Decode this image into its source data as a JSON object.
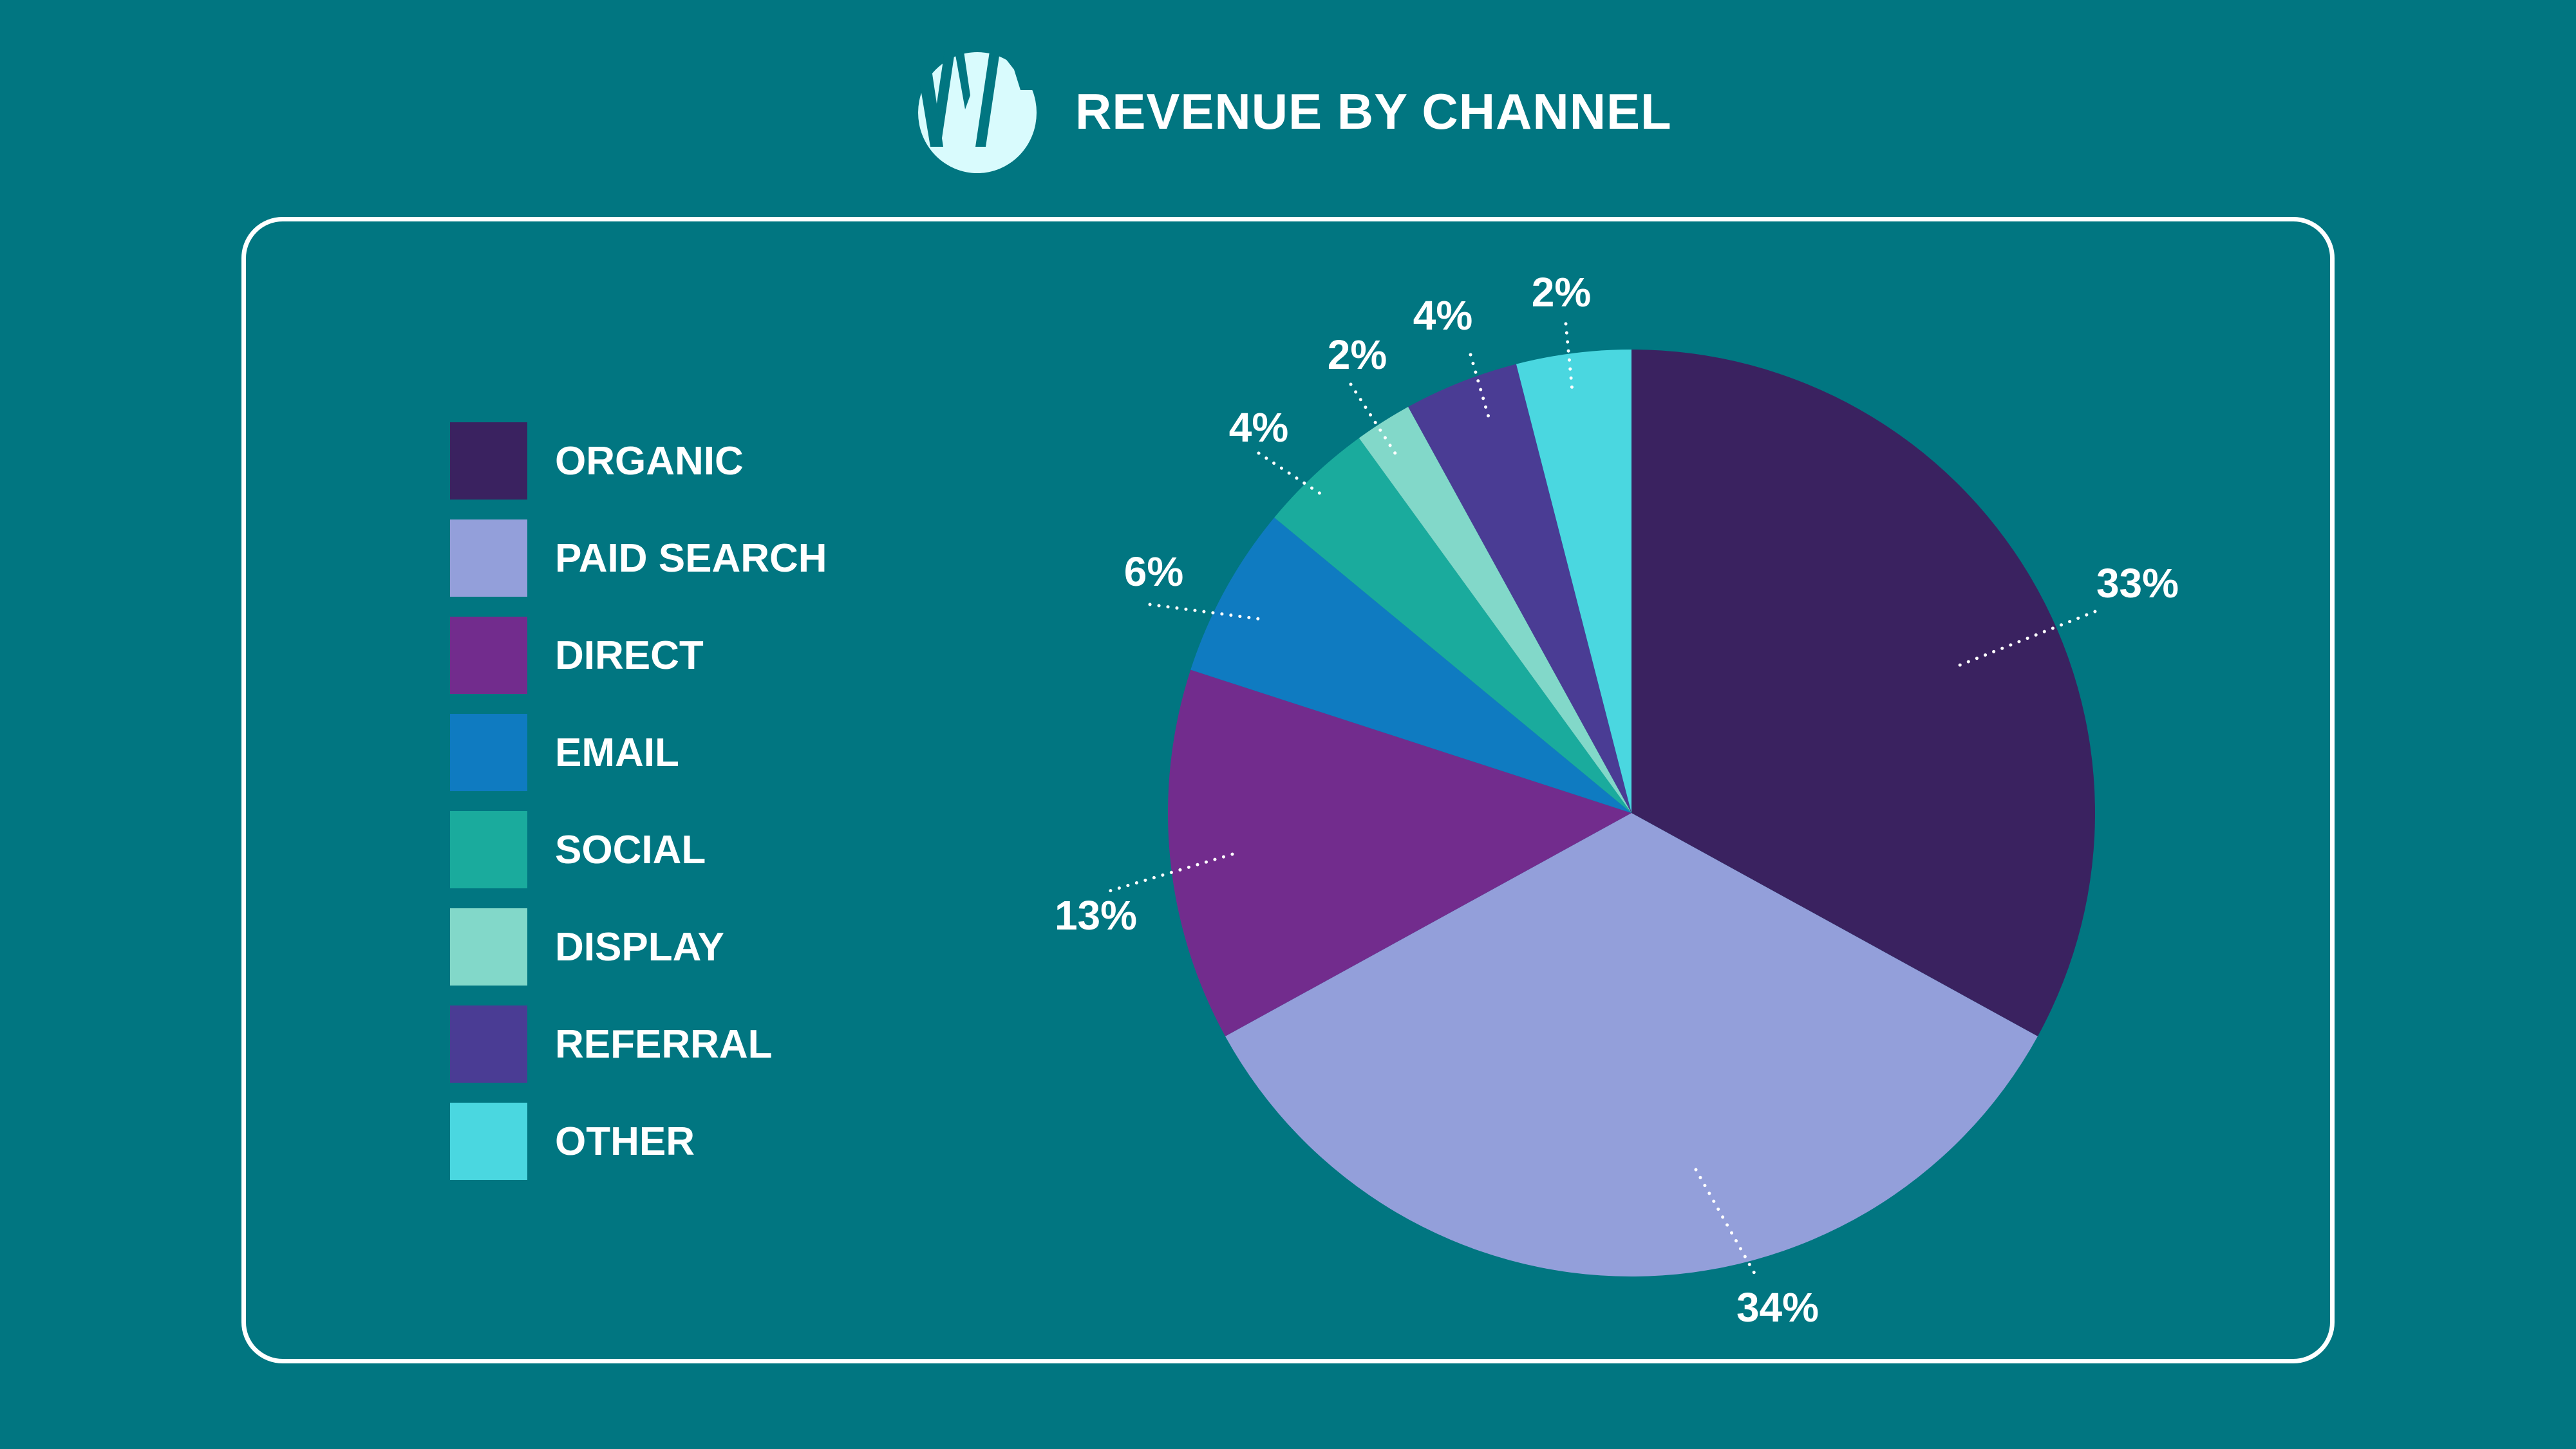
{
  "header": {
    "title": "REVENUE BY CHANNEL",
    "logo_icon": "w-circle-logo"
  },
  "colors": {
    "background": "#017681",
    "logo": "#d9fbfd"
  },
  "chart_data": {
    "type": "pie",
    "title": "REVENUE BY CHANNEL",
    "legend_position": "left",
    "start_angle": "12 o'clock, clockwise",
    "slices": [
      {
        "label": "ORGANIC",
        "value": 33,
        "value_label": "33%",
        "color": "#3a2260"
      },
      {
        "label": "PAID SEARCH",
        "value": 34,
        "value_label": "34%",
        "color": "#939fda"
      },
      {
        "label": "DIRECT",
        "value": 13,
        "value_label": "13%",
        "color": "#722c8d"
      },
      {
        "label": "EMAIL",
        "value": 6,
        "value_label": "6%",
        "color": "#0f7bc1"
      },
      {
        "label": "SOCIAL",
        "value": 4,
        "value_label": "4%",
        "color": "#1aab9d"
      },
      {
        "label": "DISPLAY",
        "value": 2,
        "value_label": "2%",
        "color": "#82d8c9"
      },
      {
        "label": "REFERRAL",
        "value": 4,
        "value_label": "4%",
        "color": "#4a3c94"
      },
      {
        "label": "OTHER",
        "value": 2,
        "value_label": "2%",
        "color": "#4ad7e0"
      }
    ]
  }
}
